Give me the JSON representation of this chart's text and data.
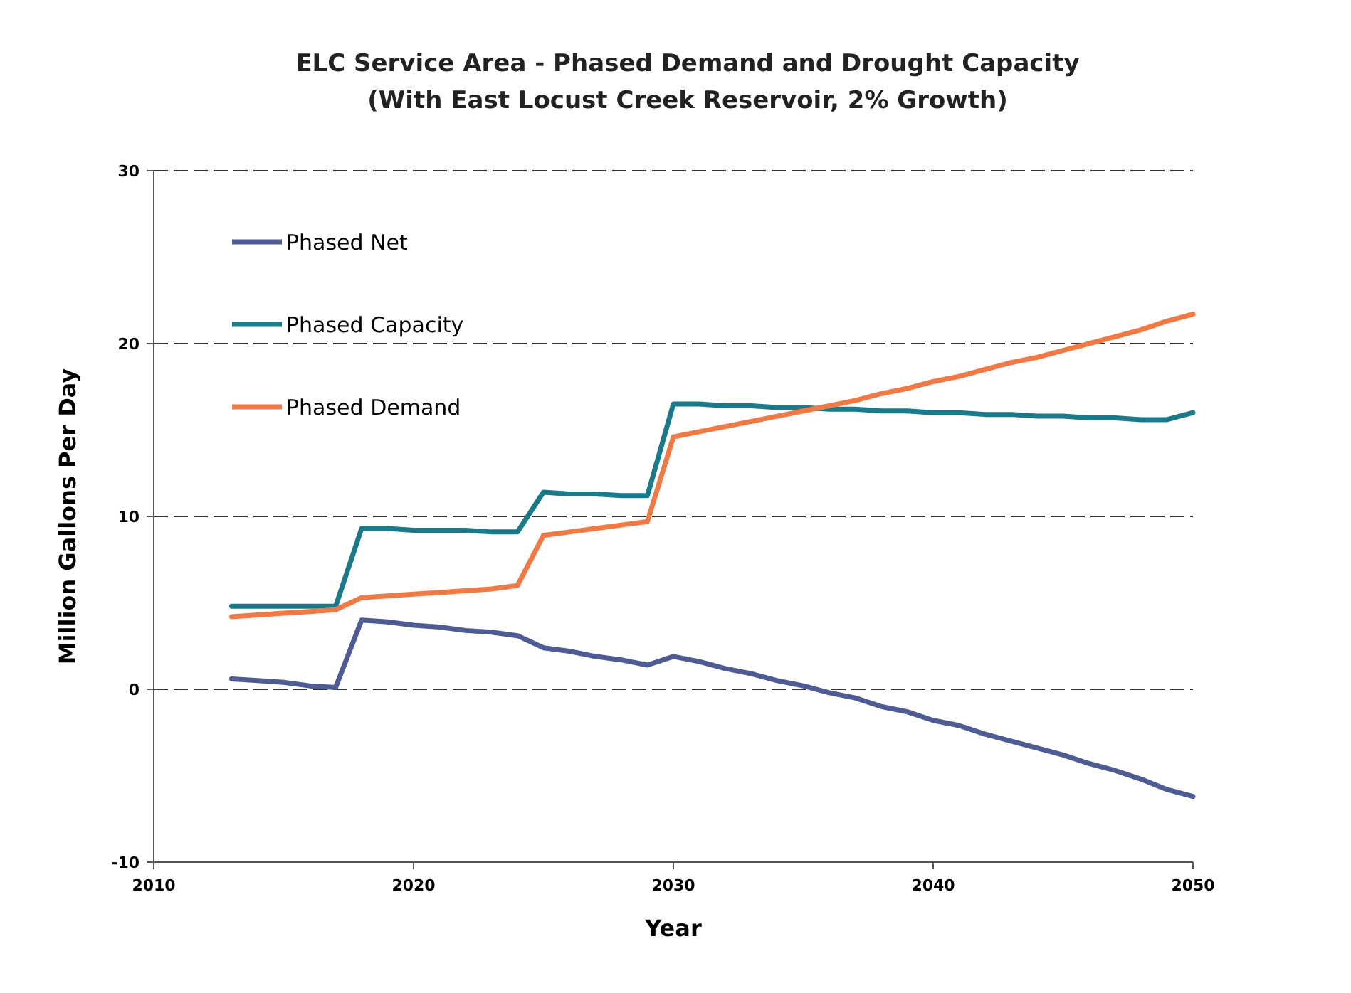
{
  "chart_data": {
    "type": "line",
    "title": "ELC Service Area - Phased Demand and Drought Capacity",
    "subtitle": "(With East Locust Creek Reservoir, 2% Growth)",
    "xlabel": "Year",
    "ylabel": "Million Gallons Per Day",
    "x": [
      2013,
      2014,
      2015,
      2016,
      2017,
      2018,
      2019,
      2020,
      2021,
      2022,
      2023,
      2024,
      2025,
      2026,
      2027,
      2028,
      2029,
      2030,
      2031,
      2032,
      2033,
      2034,
      2035,
      2036,
      2037,
      2038,
      2039,
      2040,
      2041,
      2042,
      2043,
      2044,
      2045,
      2046,
      2047,
      2048,
      2049,
      2050
    ],
    "series": [
      {
        "name": "Phased Net",
        "color": "#4f5b93",
        "values": [
          0.6,
          0.5,
          0.4,
          0.2,
          0.1,
          4.0,
          3.9,
          3.7,
          3.6,
          3.4,
          3.3,
          3.1,
          2.4,
          2.2,
          1.9,
          1.7,
          1.4,
          1.9,
          1.6,
          1.2,
          0.9,
          0.5,
          0.2,
          -0.2,
          -0.5,
          -1.0,
          -1.3,
          -1.8,
          -2.1,
          -2.6,
          -3.0,
          -3.4,
          -3.8,
          -4.3,
          -4.7,
          -5.2,
          -5.8,
          -6.2
        ]
      },
      {
        "name": "Phased Capacity",
        "color": "#1a7a8a",
        "values": [
          4.8,
          4.8,
          4.8,
          4.8,
          4.8,
          9.3,
          9.3,
          9.2,
          9.2,
          9.2,
          9.1,
          9.1,
          11.4,
          11.3,
          11.3,
          11.2,
          11.2,
          16.5,
          16.5,
          16.4,
          16.4,
          16.3,
          16.3,
          16.2,
          16.2,
          16.1,
          16.1,
          16.0,
          16.0,
          15.9,
          15.9,
          15.8,
          15.8,
          15.7,
          15.7,
          15.6,
          15.6,
          16.0
        ]
      },
      {
        "name": "Phased Demand",
        "color": "#f07a45",
        "values": [
          4.2,
          4.3,
          4.4,
          4.5,
          4.6,
          5.3,
          5.4,
          5.5,
          5.6,
          5.7,
          5.8,
          6.0,
          8.9,
          9.1,
          9.3,
          9.5,
          9.7,
          14.6,
          14.9,
          15.2,
          15.5,
          15.8,
          16.1,
          16.4,
          16.7,
          17.1,
          17.4,
          17.8,
          18.1,
          18.5,
          18.9,
          19.2,
          19.6,
          20.0,
          20.4,
          20.8,
          21.3,
          21.7
        ]
      }
    ],
    "xlim": [
      2010,
      2050
    ],
    "xticks": [
      2010,
      2020,
      2030,
      2040,
      2050
    ],
    "ylim": [
      -10,
      30
    ],
    "yticks": [
      -10,
      0,
      10,
      20,
      30
    ],
    "grid": "y",
    "legend": "top left",
    "marker": "none",
    "line_style": "solid"
  }
}
